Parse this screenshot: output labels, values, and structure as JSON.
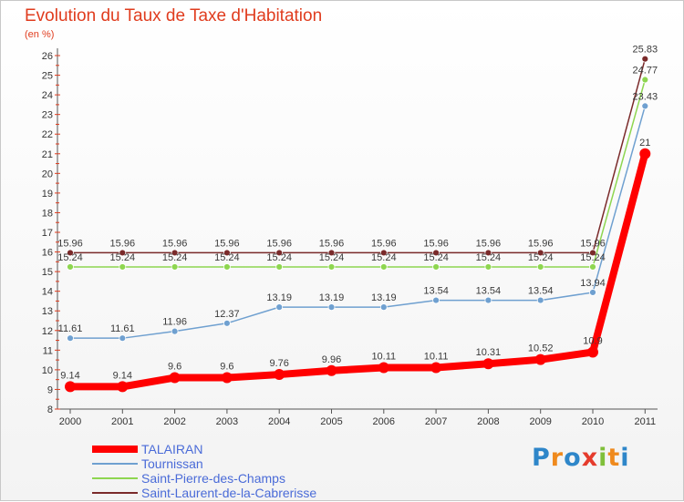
{
  "title": "Evolution du Taux de Taxe d'Habitation",
  "unit": "(en %)",
  "brand": {
    "letters": [
      "P",
      "r",
      "o",
      "x",
      "i",
      "t",
      "i"
    ],
    "colors": [
      "#2e86c9",
      "#ef8a1d",
      "#2e86c9",
      "#e53b2c",
      "#7fbf3a",
      "#ef8a1d",
      "#2e86c9"
    ]
  },
  "chart_data": {
    "type": "line",
    "title": "Evolution du Taux de Taxe d'Habitation",
    "ylabel": "(en %)",
    "xlabel": "",
    "ylim": [
      8,
      26
    ],
    "ytick_step": 1,
    "grid": false,
    "legend_position": "bottom-left",
    "categories": [
      "2000",
      "2001",
      "2002",
      "2003",
      "2004",
      "2005",
      "2006",
      "2007",
      "2008",
      "2009",
      "2010",
      "2011"
    ],
    "series": [
      {
        "name": "TALAIRAN",
        "color": "#ff0000",
        "width": 8,
        "marker": 6,
        "values": [
          9.14,
          9.14,
          9.6,
          9.6,
          9.76,
          9.96,
          10.11,
          10.11,
          10.31,
          10.52,
          10.9,
          21
        ],
        "labels": [
          "9.14",
          "9.14",
          "9.6",
          "9.6",
          "9.76",
          "9.96",
          "10.11",
          "10.11",
          "10.31",
          "10.52",
          "10.9",
          "21"
        ]
      },
      {
        "name": "Tournissan",
        "color": "#6fa0d0",
        "width": 1.5,
        "marker": 3.5,
        "values": [
          11.61,
          11.61,
          11.96,
          12.37,
          13.19,
          13.19,
          13.19,
          13.54,
          13.54,
          13.54,
          13.94,
          23.43
        ],
        "labels": [
          "11.61",
          "11.61",
          "11.96",
          "12.37",
          "13.19",
          "13.19",
          "13.19",
          "13.54",
          "13.54",
          "13.54",
          "13.94",
          "23.43"
        ]
      },
      {
        "name": "Saint-Pierre-des-Champs",
        "color": "#8ed650",
        "width": 1.5,
        "marker": 3.5,
        "values": [
          15.24,
          15.24,
          15.24,
          15.24,
          15.24,
          15.24,
          15.24,
          15.24,
          15.24,
          15.24,
          15.24,
          24.77
        ],
        "labels": [
          "15.24",
          "15.24",
          "15.24",
          "15.24",
          "15.24",
          "15.24",
          "15.24",
          "15.24",
          "15.24",
          "15.24",
          "15.24",
          "24.77"
        ]
      },
      {
        "name": "Saint-Laurent-de-la-Cabrerisse",
        "color": "#7a2a2a",
        "width": 1.5,
        "marker": 3.5,
        "values": [
          15.96,
          15.96,
          15.96,
          15.96,
          15.96,
          15.96,
          15.96,
          15.96,
          15.96,
          15.96,
          15.96,
          25.83
        ],
        "labels": [
          "15.96",
          "15.96",
          "15.96",
          "15.96",
          "15.96",
          "15.96",
          "15.96",
          "15.96",
          "15.96",
          "15.96",
          "15.96",
          "25.83"
        ]
      }
    ]
  }
}
